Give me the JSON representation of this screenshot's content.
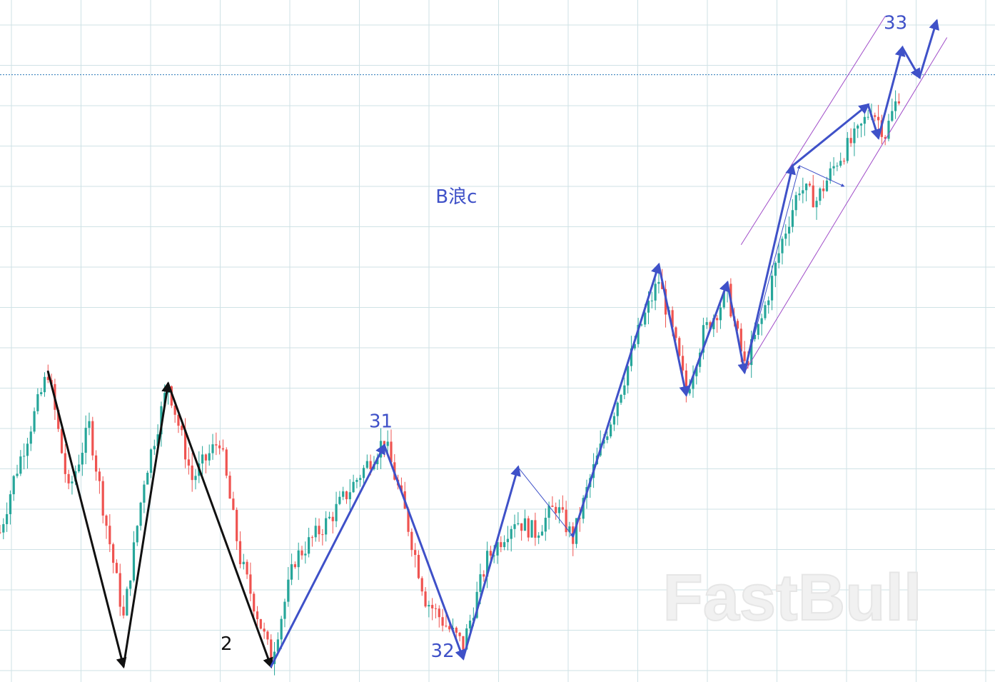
{
  "chart_data": {
    "type": "candlestick",
    "price_ylim": [
      0,
      100
    ],
    "colors": {
      "up": "#26a69a",
      "down": "#ef5350",
      "wave_blue": "#3f51c8",
      "wave_black": "#111111",
      "channel": "#a04cc8",
      "hline": "#2a78b8",
      "grid": "#cfe2e6"
    },
    "grid": true,
    "horizontal_line_level": 90.9,
    "annotations": [
      {
        "text": "B浪c",
        "x": 133,
        "y": 71.6,
        "color": "#3f51c8"
      },
      {
        "text": "31",
        "x": 111,
        "y": 37.8,
        "color": "#3f51c8"
      },
      {
        "text": "32",
        "x": 129,
        "y": 3.2,
        "color": "#3f51c8"
      },
      {
        "text": "33",
        "x": 261,
        "y": 97.8,
        "color": "#3f51c8"
      },
      {
        "text": "2",
        "x": 66,
        "y": 4.3,
        "color": "#111111"
      }
    ],
    "wave_lines": [
      {
        "color": "#111111",
        "width": 3,
        "arrow": true,
        "points": [
          [
            14,
            46.2
          ],
          [
            36,
            1.8
          ],
          [
            49,
            44.4
          ],
          [
            79,
            1.8
          ]
        ]
      },
      {
        "color": "#111111",
        "width": 1,
        "arrow": false,
        "points": [
          [
            14,
            46.2
          ],
          [
            36,
            1.8
          ]
        ]
      },
      {
        "color": "#3f51c8",
        "width": 3,
        "arrow": true,
        "points": [
          [
            79,
            1.8
          ],
          [
            112,
            35.1
          ],
          [
            135,
            3.0
          ],
          [
            151,
            31.8
          ]
        ]
      },
      {
        "color": "#3f51c8",
        "width": 1,
        "arrow": false,
        "points": [
          [
            79,
            1.8
          ],
          [
            112,
            35.1
          ],
          [
            135,
            3.0
          ]
        ]
      },
      {
        "color": "#3f51c8",
        "width": 1,
        "arrow": true,
        "points": [
          [
            151,
            31.8
          ],
          [
            167,
            21.4
          ],
          [
            192,
            62.3
          ],
          [
            200,
            42.7
          ],
          [
            212,
            59.6
          ],
          [
            217,
            46.1
          ],
          [
            233,
            77.2
          ],
          [
            246,
            74.1
          ]
        ]
      },
      {
        "color": "#3f51c8",
        "width": 3,
        "arrow": true,
        "points": [
          [
            167,
            21.4
          ],
          [
            192,
            62.3
          ],
          [
            200,
            42.7
          ],
          [
            212,
            59.6
          ],
          [
            217,
            46.1
          ],
          [
            231,
            77.2
          ],
          [
            253,
            86.4
          ],
          [
            256,
            81.4
          ],
          [
            263,
            95.0
          ],
          [
            268,
            90.5
          ],
          [
            273,
            99.0
          ]
        ]
      }
    ],
    "channel_lines": [
      {
        "color": "#a04cc8",
        "points": [
          [
            216,
            65.3
          ],
          [
            258,
            99.7
          ]
        ]
      },
      {
        "color": "#a04cc8",
        "points": [
          [
            217,
            46.1
          ],
          [
            276,
            96.5
          ]
        ]
      }
    ],
    "x_domain": [
      0,
      290
    ],
    "y_domain": [
      0,
      100
    ],
    "candles": []
  },
  "watermark": "FastBull"
}
